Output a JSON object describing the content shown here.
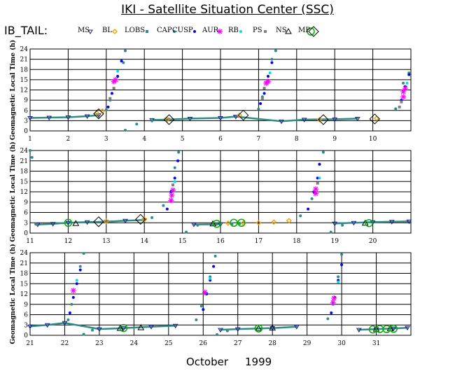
{
  "title": "IKI - Satellite Situation Center (SSC)",
  "satellite": "IB_TAIL:",
  "legend": [
    {
      "label": "MS",
      "marker": "triangle-down",
      "color": "#1c1c8c"
    },
    {
      "label": "BL",
      "marker": "diamond",
      "color": "#f0a000"
    },
    {
      "label": "LOBS",
      "marker": "square",
      "color": "#2e8b87"
    },
    {
      "label": "CAP",
      "marker": "dot",
      "color": "#2e8b87"
    },
    {
      "label": "CUSP",
      "marker": "dot",
      "color": "#0000ff"
    },
    {
      "label": "AUR",
      "marker": "star",
      "color": "#ff00ff"
    },
    {
      "label": "RB",
      "marker": "dot",
      "color": "#00e0e0"
    },
    {
      "label": "PS",
      "marker": "square",
      "color": "#808080"
    },
    {
      "label": "NS",
      "marker": "triangle-up",
      "color": "#000000"
    },
    {
      "label": "MP",
      "marker": "circle",
      "color": "#00b000"
    },
    {
      "label": "",
      "marker": "diamond-open",
      "color": "#000000"
    }
  ],
  "footer": {
    "month": "October",
    "year": "1999"
  },
  "chart_data": [
    {
      "type": "scatter",
      "ylabel": "Geomagnetic Local Time (h)",
      "ylim": [
        0,
        24
      ],
      "yticks": [
        "0",
        "3",
        "6",
        "9",
        "12",
        "15",
        "18",
        "21",
        "24"
      ],
      "xlim": [
        1,
        11
      ],
      "xticks": [
        "1",
        "2",
        "3",
        "4",
        "5",
        "6",
        "7",
        "8",
        "9",
        "10"
      ],
      "grid": true,
      "series": [
        {
          "name": "MS",
          "color": "#1c1c8c",
          "points": [
            [
              1.0,
              3.8
            ],
            [
              1.5,
              3.9
            ],
            [
              2.0,
              4.0
            ],
            [
              2.5,
              4.3
            ],
            [
              2.8,
              4.6
            ],
            [
              4.2,
              3.2
            ],
            [
              4.6,
              3.3
            ],
            [
              5.2,
              3.6
            ],
            [
              6.0,
              3.8
            ],
            [
              6.4,
              4.2
            ],
            [
              7.6,
              2.8
            ],
            [
              8.2,
              3.3
            ],
            [
              9.0,
              3.4
            ],
            [
              9.6,
              3.6
            ]
          ]
        },
        {
          "name": "BL",
          "color": "#f0a000",
          "points": [
            [
              2.75,
              5.2
            ],
            [
              2.9,
              5.8
            ],
            [
              4.6,
              3.3
            ],
            [
              6.5,
              4.6
            ],
            [
              8.6,
              3.3
            ],
            [
              10.1,
              3.7
            ]
          ]
        },
        {
          "name": "CAP",
          "color": "#2e8b87",
          "points": [
            [
              3.0,
              6.2
            ],
            [
              3.1,
              9.0
            ],
            [
              3.45,
              20.0
            ],
            [
              3.5,
              23.5
            ],
            [
              3.5,
              0.2
            ],
            [
              3.8,
              2.0
            ],
            [
              4.2,
              3.0
            ],
            [
              7.0,
              6.4
            ],
            [
              7.1,
              10.0
            ],
            [
              7.35,
              21.0
            ],
            [
              7.45,
              23.5
            ],
            [
              10.6,
              6.5
            ],
            [
              10.8,
              14.0
            ],
            [
              10.95,
              17.0
            ]
          ]
        },
        {
          "name": "CUSP",
          "color": "#0000ff",
          "points": [
            [
              3.05,
              7.0
            ],
            [
              3.15,
              11.0
            ],
            [
              3.3,
              16.0
            ],
            [
              3.4,
              20.5
            ],
            [
              7.05,
              8.0
            ],
            [
              7.15,
              11.0
            ],
            [
              7.25,
              16.0
            ],
            [
              7.35,
              20.0
            ],
            [
              10.75,
              9.0
            ],
            [
              10.85,
              13.0
            ],
            [
              10.95,
              16.5
            ]
          ]
        },
        {
          "name": "AUR",
          "color": "#ff00ff",
          "points": [
            [
              3.2,
              14.5
            ],
            [
              3.25,
              15.0
            ],
            [
              7.2,
              14.0
            ],
            [
              7.25,
              14.5
            ],
            [
              10.8,
              10.0
            ],
            [
              10.8,
              11.5
            ],
            [
              10.85,
              12.5
            ]
          ]
        },
        {
          "name": "RB",
          "color": "#00e0e0",
          "points": [
            [
              3.3,
              17.5
            ],
            [
              7.3,
              17.0
            ],
            [
              10.9,
              14.0
            ]
          ]
        },
        {
          "name": "PS",
          "color": "#808080",
          "points": [
            [
              3.1,
              9.5
            ],
            [
              3.2,
              12.5
            ],
            [
              7.1,
              9.5
            ],
            [
              7.15,
              12.5
            ],
            [
              10.7,
              7.0
            ],
            [
              10.75,
              8.5
            ]
          ]
        },
        {
          "name": "MP",
          "color": "#000000",
          "points": [
            [
              2.8,
              5.0
            ],
            [
              4.65,
              3.3
            ],
            [
              6.6,
              4.6
            ],
            [
              8.7,
              3.3
            ],
            [
              10.05,
              3.5
            ]
          ]
        }
      ]
    },
    {
      "type": "scatter",
      "ylabel": "Geomagnetic Local Time (h)",
      "ylim": [
        0,
        24
      ],
      "yticks": [
        "0",
        "3",
        "6",
        "9",
        "12",
        "15",
        "18",
        "21",
        "24"
      ],
      "xlim": [
        11,
        21
      ],
      "xticks": [
        "11",
        "12",
        "13",
        "14",
        "15",
        "16",
        "17",
        "18",
        "19",
        "20"
      ],
      "grid": true,
      "series": [
        {
          "name": "MS",
          "color": "#1c1c8c",
          "points": [
            [
              11.2,
              2.5
            ],
            [
              11.6,
              2.7
            ],
            [
              12.0,
              3.0
            ],
            [
              12.5,
              3.2
            ],
            [
              13.0,
              3.3
            ],
            [
              13.5,
              3.6
            ],
            [
              14.0,
              3.8
            ],
            [
              15.3,
              2.5
            ],
            [
              16.0,
              2.6
            ],
            [
              19.0,
              2.8
            ],
            [
              19.5,
              3.0
            ],
            [
              20.0,
              3.2
            ],
            [
              20.5,
              3.3
            ],
            [
              20.95,
              3.4
            ]
          ]
        },
        {
          "name": "BL",
          "color": "#f0a000",
          "points": [
            [
              13.0,
              3.4
            ],
            [
              14.0,
              4.0
            ],
            [
              16.2,
              2.9
            ],
            [
              16.6,
              2.9
            ],
            [
              17.0,
              3.0
            ],
            [
              17.4,
              3.2
            ],
            [
              17.8,
              3.6
            ]
          ]
        },
        {
          "name": "CAP",
          "color": "#2e8b87",
          "points": [
            [
              11.0,
              24.0
            ],
            [
              11.05,
              22.0
            ],
            [
              11.15,
              2.6
            ],
            [
              14.2,
              4.5
            ],
            [
              14.5,
              8.0
            ],
            [
              14.8,
              19.0
            ],
            [
              14.9,
              23.5
            ],
            [
              15.1,
              0.3
            ],
            [
              15.4,
              2.3
            ],
            [
              15.9,
              2.6
            ],
            [
              18.1,
              5.0
            ],
            [
              18.4,
              10.0
            ],
            [
              18.6,
              20.0
            ],
            [
              18.7,
              23.5
            ],
            [
              18.9,
              0.3
            ],
            [
              19.2,
              2.3
            ]
          ]
        },
        {
          "name": "CUSP",
          "color": "#0000ff",
          "points": [
            [
              14.6,
              7.0
            ],
            [
              14.7,
              12.0
            ],
            [
              14.8,
              16.0
            ],
            [
              14.88,
              21.0
            ],
            [
              18.3,
              7.0
            ],
            [
              18.45,
              12.0
            ],
            [
              18.55,
              16.0
            ],
            [
              18.6,
              20.0
            ]
          ]
        },
        {
          "name": "AUR",
          "color": "#ff00ff",
          "points": [
            [
              14.7,
              9.5
            ],
            [
              14.72,
              11.0
            ],
            [
              14.75,
              12.5
            ],
            [
              18.5,
              11.5
            ],
            [
              18.5,
              12.8
            ]
          ]
        },
        {
          "name": "RB",
          "color": "#00e0e0",
          "points": [
            [
              14.8,
              15.0
            ],
            [
              18.6,
              16.0
            ]
          ]
        },
        {
          "name": "PS",
          "color": "#808080",
          "points": [
            [
              14.75,
              14.0
            ],
            [
              18.55,
              14.5
            ]
          ]
        },
        {
          "name": "NS",
          "color": "#000000",
          "points": [
            [
              12.2,
              2.8
            ],
            [
              15.8,
              2.7
            ],
            [
              19.8,
              2.9
            ]
          ]
        },
        {
          "name": "LOBS",
          "color": "#2e8b87",
          "points": [
            [
              16.3,
              2.7
            ],
            [
              16.5,
              2.8
            ]
          ]
        },
        {
          "name": "MP",
          "color": "#00b000",
          "points": [
            [
              12.0,
              3.0
            ],
            [
              15.9,
              2.7
            ],
            [
              16.35,
              3.0
            ],
            [
              16.55,
              3.0
            ],
            [
              19.9,
              2.9
            ]
          ]
        },
        {
          "name": "",
          "color": "#000000",
          "points": [
            [
              12.8,
              3.3
            ],
            [
              13.9,
              4.0
            ]
          ]
        }
      ]
    },
    {
      "type": "scatter",
      "ylabel": "Geomagnetic Local Time (h)",
      "ylim": [
        0,
        24
      ],
      "yticks": [
        "0",
        "3",
        "6",
        "9",
        "12",
        "15",
        "18",
        "21",
        "24"
      ],
      "xlim": [
        21,
        32
      ],
      "xticks": [
        "21",
        "22",
        "23",
        "24",
        "25",
        "26",
        "27",
        "28",
        "29",
        "30",
        "31"
      ],
      "grid": true,
      "series": [
        {
          "name": "MS",
          "color": "#1c1c8c",
          "points": [
            [
              21.0,
              2.6
            ],
            [
              21.5,
              3.0
            ],
            [
              22.0,
              3.6
            ],
            [
              23.0,
              1.8
            ],
            [
              23.7,
              2.1
            ],
            [
              24.5,
              2.5
            ],
            [
              25.2,
              2.8
            ],
            [
              26.5,
              1.6
            ],
            [
              27.0,
              1.8
            ],
            [
              28.0,
              2.1
            ],
            [
              28.7,
              2.5
            ],
            [
              30.5,
              1.6
            ],
            [
              31.0,
              1.8
            ],
            [
              31.5,
              2.0
            ],
            [
              31.9,
              2.2
            ]
          ]
        },
        {
          "name": "CAP",
          "color": "#2e8b87",
          "points": [
            [
              22.1,
              4.5
            ],
            [
              22.2,
              9.0
            ],
            [
              22.45,
              20.0
            ],
            [
              22.55,
              23.8
            ],
            [
              22.55,
              0.3
            ],
            [
              22.8,
              1.5
            ],
            [
              25.8,
              4.5
            ],
            [
              25.95,
              8.5
            ],
            [
              26.2,
              17.0
            ],
            [
              26.35,
              23.0
            ],
            [
              26.4,
              0.2
            ],
            [
              26.7,
              1.3
            ],
            [
              29.6,
              4.8
            ],
            [
              29.75,
              9.0
            ],
            [
              29.9,
              17.0
            ],
            [
              30.0,
              23.5
            ]
          ]
        },
        {
          "name": "CUSP",
          "color": "#0000ff",
          "points": [
            [
              22.15,
              6.5
            ],
            [
              22.25,
              11.0
            ],
            [
              22.35,
              15.0
            ],
            [
              22.45,
              19.0
            ],
            [
              26.0,
              7.5
            ],
            [
              26.1,
              12.0
            ],
            [
              26.2,
              16.0
            ],
            [
              26.3,
              20.0
            ],
            [
              29.7,
              6.5
            ],
            [
              29.8,
              11.0
            ],
            [
              29.9,
              16.0
            ],
            [
              30.0,
              20.5
            ]
          ]
        },
        {
          "name": "AUR",
          "color": "#ff00ff",
          "points": [
            [
              22.25,
              13.0
            ],
            [
              26.05,
              12.5
            ],
            [
              29.75,
              9.5
            ],
            [
              29.78,
              10.8
            ]
          ]
        },
        {
          "name": "RB",
          "color": "#00e0e0",
          "points": [
            [
              22.35,
              16.0
            ],
            [
              26.2,
              16.5
            ],
            [
              29.9,
              15.5
            ]
          ]
        },
        {
          "name": "NS",
          "color": "#000000",
          "points": [
            [
              23.6,
              2.0
            ],
            [
              24.2,
              2.2
            ],
            [
              27.6,
              2.0
            ],
            [
              28.0,
              2.1
            ],
            [
              31.0,
              1.8
            ],
            [
              31.4,
              1.9
            ]
          ]
        },
        {
          "name": "MP",
          "color": "#00b000",
          "points": [
            [
              23.7,
              2.1
            ],
            [
              27.6,
              2.0
            ],
            [
              30.9,
              1.7
            ],
            [
              31.1,
              1.8
            ],
            [
              31.3,
              1.8
            ],
            [
              31.5,
              1.9
            ]
          ]
        }
      ]
    }
  ]
}
